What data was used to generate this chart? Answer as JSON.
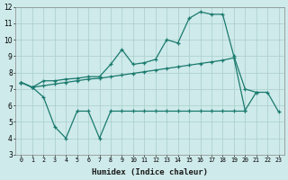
{
  "xlabel": "Humidex (Indice chaleur)",
  "bg_color": "#ceeaea",
  "line_color": "#1a7a6e",
  "grid_color": "#aacccc",
  "xlim": [
    -0.5,
    23.5
  ],
  "ylim": [
    3,
    12
  ],
  "yticks": [
    3,
    4,
    5,
    6,
    7,
    8,
    9,
    10,
    11,
    12
  ],
  "xticks": [
    0,
    1,
    2,
    3,
    4,
    5,
    6,
    7,
    8,
    9,
    10,
    11,
    12,
    13,
    14,
    15,
    16,
    17,
    18,
    19,
    20,
    21,
    22,
    23
  ],
  "curve_upper_x": [
    0,
    1,
    2,
    3,
    4,
    5,
    6,
    7,
    8,
    9,
    10,
    11,
    12,
    13,
    14,
    15,
    16,
    17,
    18,
    19,
    20,
    21
  ],
  "curve_upper_y": [
    7.4,
    7.1,
    7.5,
    7.5,
    7.6,
    7.65,
    7.75,
    7.75,
    8.5,
    9.4,
    8.5,
    8.6,
    8.8,
    10.0,
    9.8,
    11.3,
    11.7,
    11.55,
    11.55,
    9.0,
    7.0,
    6.8
  ],
  "curve_mid_x": [
    0,
    1,
    2,
    3,
    4,
    5,
    6,
    7,
    8,
    9,
    10,
    11,
    12,
    13,
    14,
    15,
    16,
    17,
    18,
    19,
    20,
    21,
    22,
    23
  ],
  "curve_mid_y": [
    7.4,
    7.1,
    7.2,
    7.3,
    7.4,
    7.5,
    7.6,
    7.65,
    7.75,
    7.85,
    7.95,
    8.05,
    8.15,
    8.25,
    8.35,
    8.45,
    8.55,
    8.65,
    8.75,
    8.9,
    5.7,
    6.8,
    6.8,
    5.6
  ],
  "curve_lower_x": [
    0,
    1,
    2,
    3,
    4,
    5,
    6,
    7,
    8,
    9,
    10,
    11,
    12,
    13,
    14,
    15,
    16,
    17,
    18,
    19,
    20
  ],
  "curve_lower_y": [
    7.4,
    7.1,
    6.5,
    4.7,
    4.0,
    5.65,
    5.65,
    4.0,
    5.65,
    5.65,
    5.65,
    5.65,
    5.65,
    5.65,
    5.65,
    5.65,
    5.65,
    5.65,
    5.65,
    5.65,
    5.65
  ]
}
